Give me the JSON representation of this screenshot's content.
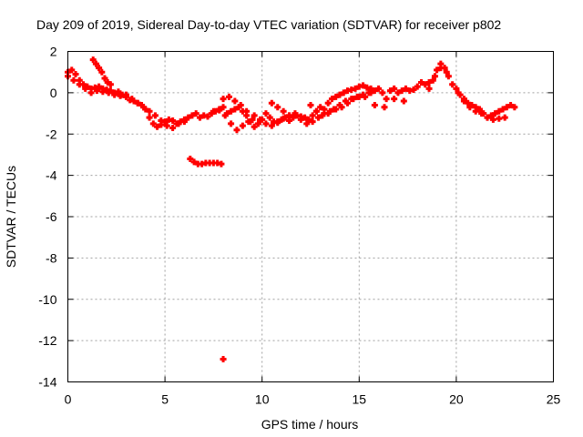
{
  "chart_data": {
    "type": "scatter",
    "title": "Day 209 of 2019, Sidereal Day-to-day VTEC variation (SDTVAR) for receiver p802",
    "xlabel": "GPS time / hours",
    "ylabel": "SDTVAR / TECUs",
    "xlim": [
      0,
      25
    ],
    "ylim": [
      -14,
      2
    ],
    "xticks": [
      "0",
      "5",
      "10",
      "15",
      "20",
      "25"
    ],
    "xtick_values": [
      0,
      5,
      10,
      15,
      20,
      25
    ],
    "yticks": [
      "2",
      "0",
      "-2",
      "-4",
      "-6",
      "-8",
      "-10",
      "-12",
      "-14"
    ],
    "ytick_values": [
      2,
      0,
      -2,
      -4,
      -6,
      -8,
      -10,
      -12,
      -14
    ],
    "grid": true,
    "marker": "+",
    "color": "#ff0000",
    "series": [
      {
        "name": "SDTVAR",
        "x": [
          0.0,
          0.2,
          0.4,
          0.6,
          0.8,
          1.0,
          1.2,
          1.4,
          1.6,
          1.8,
          2.0,
          2.2,
          2.4,
          2.6,
          2.8,
          3.0,
          3.2,
          3.4,
          3.6,
          3.8,
          4.0,
          4.2,
          4.4,
          4.6,
          4.8,
          5.0,
          5.2,
          5.4,
          5.6,
          5.8,
          6.0,
          6.2,
          6.4,
          6.6,
          6.8,
          7.0,
          7.2,
          7.4,
          7.6,
          7.8,
          8.0,
          8.2,
          8.4,
          8.6,
          8.8,
          9.0,
          9.2,
          9.4,
          9.6,
          9.8,
          10.0,
          10.2,
          10.4,
          10.6,
          10.8,
          11.0,
          11.2,
          11.4,
          11.6,
          11.8,
          12.0,
          12.2,
          12.4,
          12.6,
          12.8,
          13.0,
          13.2,
          13.4,
          13.6,
          13.8,
          14.0,
          14.2,
          14.4,
          14.6,
          14.8,
          15.0,
          15.2,
          15.4,
          15.6,
          15.8,
          16.0,
          16.2,
          16.4,
          16.6,
          16.8,
          17.0,
          17.2,
          17.4,
          17.6,
          17.8,
          18.0,
          18.2,
          18.4,
          18.6,
          18.8,
          19.0,
          19.2,
          19.4,
          19.6,
          19.8,
          20.0,
          20.2,
          20.4,
          20.6,
          20.8,
          21.0,
          21.2,
          21.4,
          21.6,
          21.8,
          22.0,
          22.2,
          22.4,
          22.6,
          22.8,
          23.0,
          0.0,
          0.3,
          0.6,
          0.9,
          1.2,
          1.5,
          1.8,
          2.1,
          2.4,
          2.7,
          3.0,
          3.3,
          3.6,
          3.9,
          4.2,
          4.5,
          4.8,
          5.1,
          5.4,
          5.7,
          6.0,
          7.5,
          7.8,
          8.1,
          8.4,
          8.7,
          9.0,
          9.3,
          9.6,
          9.9,
          10.2,
          10.5,
          10.8,
          11.1,
          11.4,
          11.7,
          12.0,
          12.3,
          12.6,
          12.9,
          13.2,
          13.5,
          13.8,
          14.1,
          14.4,
          14.7,
          15.0,
          15.3,
          15.6,
          18.6,
          18.9,
          19.2,
          19.5,
          20.1,
          20.4,
          20.7,
          21.0,
          21.3,
          21.6,
          21.9,
          22.2,
          22.5,
          1.3,
          1.45,
          1.6,
          1.75,
          1.9,
          2.05,
          2.2,
          8.0,
          8.3,
          8.6,
          8.9,
          9.2,
          9.5,
          10.5,
          10.8,
          11.1,
          11.4,
          12.5,
          12.8,
          13.1,
          13.4,
          13.7,
          14.0,
          14.3,
          14.6,
          14.9,
          15.2,
          15.5,
          6.3,
          6.5,
          6.7,
          6.9,
          7.1,
          7.3,
          7.5,
          7.7,
          7.9,
          15.8,
          16.3,
          16.8,
          17.3,
          8.0
        ],
        "y": [
          1.0,
          1.1,
          0.9,
          0.6,
          0.4,
          0.3,
          0.2,
          0.25,
          0.3,
          0.2,
          0.15,
          0.1,
          0.0,
          0.05,
          -0.1,
          -0.2,
          -0.35,
          -0.4,
          -0.5,
          -0.6,
          -0.8,
          -1.2,
          -1.5,
          -1.65,
          -1.55,
          -1.4,
          -1.3,
          -1.35,
          -1.5,
          -1.4,
          -1.3,
          -1.2,
          -1.1,
          -1.0,
          -1.2,
          -1.1,
          -1.15,
          -1.0,
          -0.9,
          -0.85,
          -0.7,
          -1.0,
          -0.9,
          -0.8,
          -0.7,
          -0.9,
          -1.1,
          -1.4,
          -1.65,
          -1.5,
          -1.3,
          -1.0,
          -1.2,
          -1.4,
          -1.45,
          -1.3,
          -1.2,
          -1.35,
          -1.2,
          -1.1,
          -1.15,
          -1.2,
          -1.3,
          -1.1,
          -0.9,
          -0.7,
          -0.8,
          -0.5,
          -0.3,
          -0.2,
          -0.1,
          0.0,
          0.1,
          0.15,
          0.2,
          0.3,
          0.35,
          0.25,
          0.2,
          0.1,
          0.2,
          0.0,
          -0.3,
          0.1,
          0.2,
          0.0,
          0.1,
          0.2,
          0.1,
          0.15,
          0.3,
          0.5,
          0.4,
          0.2,
          0.6,
          1.1,
          1.4,
          1.2,
          0.8,
          0.4,
          0.2,
          -0.1,
          -0.3,
          -0.5,
          -0.6,
          -0.7,
          -0.8,
          -1.0,
          -1.2,
          -1.1,
          -1.0,
          -0.9,
          -0.8,
          -0.7,
          -0.6,
          -0.7,
          0.8,
          0.6,
          0.4,
          0.2,
          0.0,
          0.1,
          0.05,
          0.0,
          -0.1,
          -0.15,
          -0.1,
          -0.3,
          -0.5,
          -0.7,
          -0.9,
          -1.1,
          -1.35,
          -1.6,
          -1.7,
          -1.5,
          -1.4,
          -0.9,
          -0.8,
          -1.1,
          -1.5,
          -1.8,
          -1.6,
          -1.4,
          -1.1,
          -1.3,
          -1.5,
          -1.6,
          -1.4,
          -1.25,
          -1.1,
          -1.0,
          -1.3,
          -1.5,
          -1.4,
          -1.2,
          -1.0,
          -0.9,
          -0.8,
          -0.7,
          -0.5,
          -0.3,
          -0.2,
          -0.2,
          0.0,
          0.5,
          0.8,
          1.2,
          1.0,
          0.0,
          -0.4,
          -0.7,
          -0.9,
          -1.0,
          -1.2,
          -1.3,
          -1.25,
          -1.2,
          1.6,
          1.4,
          1.2,
          1.0,
          0.7,
          0.5,
          0.4,
          -0.3,
          -0.2,
          -0.4,
          -0.6,
          -0.9,
          -1.3,
          -0.5,
          -0.7,
          -0.9,
          -1.1,
          -0.6,
          -0.9,
          -1.1,
          -1.0,
          -0.8,
          -0.6,
          -0.4,
          -0.3,
          -0.2,
          -0.1,
          0.0,
          -3.2,
          -3.35,
          -3.45,
          -3.45,
          -3.4,
          -3.4,
          -3.4,
          -3.4,
          -3.45,
          -0.6,
          -0.7,
          -0.3,
          -0.4,
          -12.9
        ]
      }
    ]
  }
}
